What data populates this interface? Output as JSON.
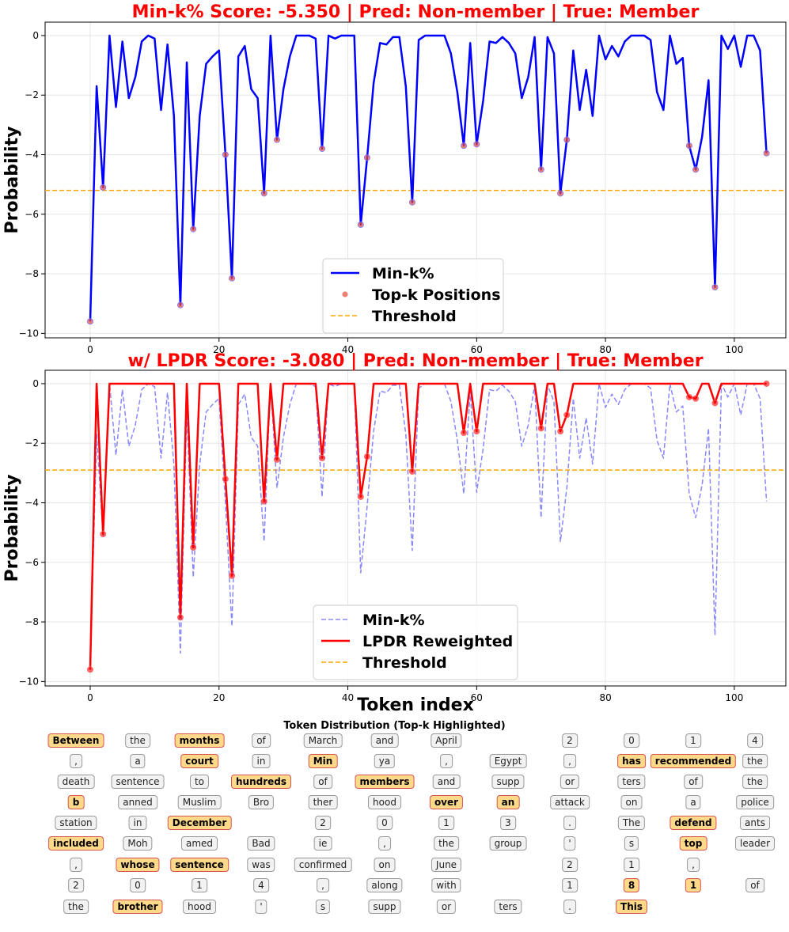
{
  "chart_data": [
    {
      "type": "line",
      "title": "Min-k% Score: -5.350 | Pred: Non-member | True: Member",
      "xlabel": "",
      "ylabel": "Probability",
      "xlim": [
        -7,
        108
      ],
      "ylim": [
        -10.15,
        0.45
      ],
      "xticks": [
        0,
        20,
        40,
        60,
        80,
        100
      ],
      "yticks": [
        0,
        -2,
        -4,
        -6,
        -8,
        -10
      ],
      "grid": true,
      "legend": {
        "placement": "lower-center"
      },
      "threshold": -5.2,
      "series": [
        {
          "name": "Min-k%",
          "color": "#0000ff",
          "style": "solid",
          "values": [
            -9.6,
            -1.7,
            -5.1,
            0,
            -2.4,
            -0.2,
            -2.1,
            -1.4,
            -0.2,
            0,
            -0.1,
            -2.5,
            -0.3,
            -2.7,
            -9.05,
            -0.9,
            -6.5,
            -2.7,
            -0.95,
            -0.7,
            -0.5,
            -4.0,
            -8.15,
            -0.7,
            -0.35,
            -1.8,
            -2.1,
            -5.3,
            0,
            -3.5,
            -1.8,
            -0.7,
            0,
            0,
            0,
            -0.1,
            -3.8,
            0,
            -0.1,
            0,
            0,
            0,
            -6.35,
            -4.1,
            -1.6,
            -0.25,
            -0.3,
            -0.05,
            -0.05,
            -1.7,
            -5.6,
            -0.15,
            0,
            0,
            0,
            0,
            -0.6,
            -1.9,
            -3.7,
            -0.25,
            -3.65,
            -2.2,
            -0.2,
            -0.25,
            -0.05,
            -0.25,
            -0.6,
            -2.1,
            -1.4,
            -0.05,
            -4.5,
            -0.05,
            -0.6,
            -5.3,
            -3.5,
            -0.5,
            -2.5,
            -1.15,
            -2.7,
            0,
            -0.8,
            -0.35,
            -0.7,
            -0.2,
            0,
            0,
            0,
            -0.15,
            -1.9,
            -2.5,
            0,
            -0.95,
            -0.75,
            -3.7,
            -4.5,
            -3.4,
            -1.5,
            -8.45,
            0,
            -0.45,
            0,
            -1.05,
            0,
            0,
            -0.5,
            -3.95
          ]
        },
        {
          "name": "Top-k Positions",
          "color": "#e74c3c",
          "style": "markers",
          "points": [
            [
              0,
              -9.6
            ],
            [
              2,
              -5.1
            ],
            [
              14,
              -9.05
            ],
            [
              16,
              -6.5
            ],
            [
              21,
              -4.0
            ],
            [
              22,
              -8.15
            ],
            [
              27,
              -5.3
            ],
            [
              29,
              -3.5
            ],
            [
              36,
              -3.8
            ],
            [
              42,
              -6.35
            ],
            [
              43,
              -4.1
            ],
            [
              50,
              -5.6
            ],
            [
              58,
              -3.7
            ],
            [
              60,
              -3.65
            ],
            [
              70,
              -4.5
            ],
            [
              73,
              -5.3
            ],
            [
              74,
              -3.5
            ],
            [
              93,
              -3.7
            ],
            [
              94,
              -4.5
            ],
            [
              97,
              -8.45
            ],
            [
              105,
              -3.95
            ]
          ]
        },
        {
          "name": "Threshold",
          "color": "#ffa500",
          "style": "dashed"
        }
      ]
    },
    {
      "type": "line",
      "title": "w/ LPDR Score: -3.080 | Pred: Non-member | True: Member",
      "xlabel": "Token index",
      "ylabel": "Probability",
      "xlim": [
        -7,
        108
      ],
      "ylim": [
        -10.15,
        0.45
      ],
      "xticks": [
        0,
        20,
        40,
        60,
        80,
        100
      ],
      "yticks": [
        0,
        -2,
        -4,
        -6,
        -8,
        -10
      ],
      "grid": true,
      "legend": {
        "placement": "lower-center"
      },
      "threshold": -2.9,
      "series": [
        {
          "name": "Min-k%",
          "color": "#8888ff",
          "style": "dashed",
          "ref_series": 0
        },
        {
          "name": "LPDR Reweighted",
          "color": "#ff0000",
          "style": "solid",
          "points": [
            [
              0,
              -9.6
            ],
            [
              1,
              0
            ],
            [
              2,
              -5.05
            ],
            [
              3,
              0
            ],
            [
              13,
              0
            ],
            [
              14,
              -7.85
            ],
            [
              15,
              0
            ],
            [
              16,
              -5.5
            ],
            [
              17,
              0
            ],
            [
              20,
              0
            ],
            [
              21,
              -3.2
            ],
            [
              22,
              -6.45
            ],
            [
              23,
              0
            ],
            [
              26,
              0
            ],
            [
              27,
              -3.95
            ],
            [
              28,
              0
            ],
            [
              29,
              -2.55
            ],
            [
              30,
              0
            ],
            [
              35,
              0
            ],
            [
              36,
              -2.5
            ],
            [
              37,
              0
            ],
            [
              41,
              0
            ],
            [
              42,
              -3.8
            ],
            [
              43,
              -2.45
            ],
            [
              44,
              0
            ],
            [
              49,
              0
            ],
            [
              50,
              -2.95
            ],
            [
              51,
              0
            ],
            [
              57,
              0
            ],
            [
              58,
              -1.65
            ],
            [
              59,
              0
            ],
            [
              60,
              -1.6
            ],
            [
              61,
              0
            ],
            [
              69,
              0
            ],
            [
              70,
              -1.5
            ],
            [
              71,
              0
            ],
            [
              72,
              0
            ],
            [
              73,
              -1.6
            ],
            [
              74,
              -1.05
            ],
            [
              75,
              0
            ],
            [
              92,
              0
            ],
            [
              93,
              -0.45
            ],
            [
              94,
              -0.5
            ],
            [
              95,
              0
            ],
            [
              96,
              0
            ],
            [
              97,
              -0.65
            ],
            [
              98,
              0
            ],
            [
              105,
              0
            ]
          ],
          "marker_points": [
            [
              0,
              -9.6
            ],
            [
              2,
              -5.05
            ],
            [
              14,
              -7.85
            ],
            [
              16,
              -5.5
            ],
            [
              21,
              -3.2
            ],
            [
              22,
              -6.45
            ],
            [
              27,
              -3.95
            ],
            [
              29,
              -2.55
            ],
            [
              36,
              -2.5
            ],
            [
              42,
              -3.8
            ],
            [
              43,
              -2.45
            ],
            [
              50,
              -2.95
            ],
            [
              58,
              -1.65
            ],
            [
              60,
              -1.6
            ],
            [
              70,
              -1.5
            ],
            [
              73,
              -1.6
            ],
            [
              74,
              -1.05
            ],
            [
              93,
              -0.45
            ],
            [
              94,
              -0.5
            ],
            [
              97,
              -0.65
            ],
            [
              105,
              0
            ]
          ]
        },
        {
          "name": "Threshold",
          "color": "#ffa500",
          "style": "dashed"
        }
      ]
    }
  ],
  "tokens": {
    "title": "Token Distribution (Top-k Highlighted)",
    "rows": [
      [
        {
          "t": "Between",
          "h": true
        },
        {
          "t": "the"
        },
        {
          "t": "months",
          "h": true
        },
        {
          "t": "of"
        },
        {
          "t": "March"
        },
        {
          "t": "and"
        },
        {
          "t": "April"
        },
        {
          "t": ""
        },
        {
          "t": "2"
        },
        {
          "t": "0"
        },
        {
          "t": "1"
        },
        {
          "t": "4"
        }
      ],
      [
        {
          "t": ","
        },
        {
          "t": "a"
        },
        {
          "t": "court",
          "h": true
        },
        {
          "t": "in"
        },
        {
          "t": "Min",
          "h": true
        },
        {
          "t": "ya"
        },
        {
          "t": ","
        },
        {
          "t": "Egypt"
        },
        {
          "t": ","
        },
        {
          "t": "has",
          "h": true
        },
        {
          "t": "recommended",
          "h": true
        },
        {
          "t": "the"
        }
      ],
      [
        {
          "t": "death"
        },
        {
          "t": "sentence"
        },
        {
          "t": "to"
        },
        {
          "t": "hundreds",
          "h": true
        },
        {
          "t": "of"
        },
        {
          "t": "members",
          "h": true
        },
        {
          "t": "and"
        },
        {
          "t": "supp"
        },
        {
          "t": "or"
        },
        {
          "t": "ters"
        },
        {
          "t": "of"
        },
        {
          "t": "the"
        }
      ],
      [
        {
          "t": "b",
          "h": true
        },
        {
          "t": "anned"
        },
        {
          "t": "Muslim"
        },
        {
          "t": "Bro"
        },
        {
          "t": "ther"
        },
        {
          "t": "hood"
        },
        {
          "t": "over",
          "h": true
        },
        {
          "t": "an",
          "h": true
        },
        {
          "t": "attack"
        },
        {
          "t": "on"
        },
        {
          "t": "a"
        },
        {
          "t": "police"
        }
      ],
      [
        {
          "t": "station"
        },
        {
          "t": "in"
        },
        {
          "t": "December",
          "h": true
        },
        {
          "t": ""
        },
        {
          "t": "2"
        },
        {
          "t": "0"
        },
        {
          "t": "1"
        },
        {
          "t": "3"
        },
        {
          "t": "."
        },
        {
          "t": "The"
        },
        {
          "t": "defend",
          "h": true
        },
        {
          "t": "ants"
        }
      ],
      [
        {
          "t": "included",
          "h": true
        },
        {
          "t": "Moh"
        },
        {
          "t": "amed"
        },
        {
          "t": "Bad"
        },
        {
          "t": "ie"
        },
        {
          "t": ","
        },
        {
          "t": "the"
        },
        {
          "t": "group"
        },
        {
          "t": "'"
        },
        {
          "t": "s"
        },
        {
          "t": "top",
          "h": true
        },
        {
          "t": "leader"
        }
      ],
      [
        {
          "t": ","
        },
        {
          "t": "whose",
          "h": true
        },
        {
          "t": "sentence",
          "h": true
        },
        {
          "t": "was"
        },
        {
          "t": "confirmed"
        },
        {
          "t": "on"
        },
        {
          "t": "June"
        },
        {
          "t": ""
        },
        {
          "t": "2"
        },
        {
          "t": "1"
        },
        {
          "t": ","
        },
        {
          "t": ""
        }
      ],
      [
        {
          "t": "2"
        },
        {
          "t": "0"
        },
        {
          "t": "1"
        },
        {
          "t": "4"
        },
        {
          "t": ","
        },
        {
          "t": "along"
        },
        {
          "t": "with"
        },
        {
          "t": ""
        },
        {
          "t": "1"
        },
        {
          "t": "8",
          "h": true
        },
        {
          "t": "1",
          "h": true
        },
        {
          "t": "of"
        }
      ],
      [
        {
          "t": "the"
        },
        {
          "t": "brother",
          "h": true
        },
        {
          "t": "hood"
        },
        {
          "t": "'"
        },
        {
          "t": "s"
        },
        {
          "t": "supp"
        },
        {
          "t": "or"
        },
        {
          "t": "ters"
        },
        {
          "t": "."
        },
        {
          "t": "This",
          "h": true
        }
      ]
    ]
  }
}
